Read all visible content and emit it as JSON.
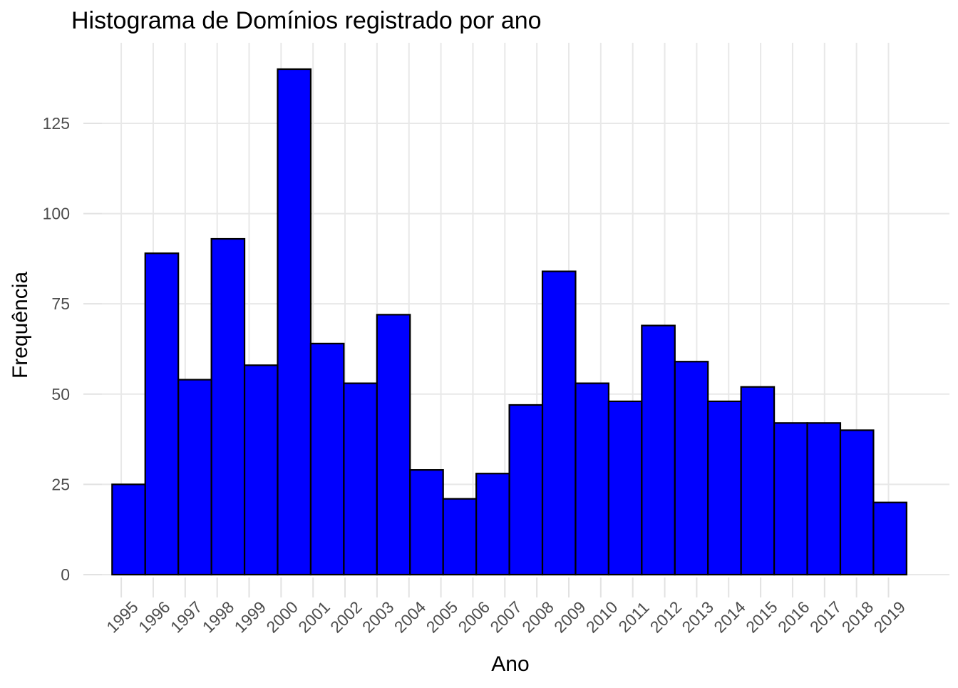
{
  "title": "Histograma de Domínios registrado por ano",
  "chart_data": {
    "type": "bar",
    "subtype": "histogram",
    "title": "Histograma de Domínios registrado por ano",
    "xlabel": "Ano",
    "ylabel": "Frequência",
    "categories": [
      "1995",
      "1996",
      "1997",
      "1998",
      "1999",
      "2000",
      "2001",
      "2002",
      "2003",
      "2004",
      "2005",
      "2006",
      "2007",
      "2008",
      "2009",
      "2010",
      "2011",
      "2012",
      "2013",
      "2014",
      "2015",
      "2016",
      "2017",
      "2018"
    ],
    "values": [
      25,
      89,
      54,
      93,
      58,
      140,
      64,
      53,
      72,
      29,
      21,
      28,
      47,
      84,
      53,
      48,
      69,
      59,
      48,
      52,
      42,
      42,
      40,
      20
    ],
    "x_tick_labels": [
      "1995",
      "1996",
      "1997",
      "1998",
      "1999",
      "2000",
      "2001",
      "2002",
      "2003",
      "2004",
      "2005",
      "2006",
      "2007",
      "2008",
      "2009",
      "2010",
      "2011",
      "2012",
      "2013",
      "2014",
      "2015",
      "2016",
      "2017",
      "2018",
      "2019"
    ],
    "y_ticks": [
      0,
      25,
      50,
      75,
      100,
      125
    ],
    "ylim": [
      0,
      147
    ],
    "grid": "major-only",
    "legend": "none",
    "x_tick_label_angle_deg": 45,
    "bar_fill": "#0000ff",
    "bar_stroke": "#000000"
  },
  "colors": {
    "background": "#ffffff",
    "gridline": "#e8e8e8",
    "tick_mark": "#e2e2e2",
    "axis_text": "#4d4d4d",
    "title_text": "#000000",
    "axis_title_text": "#000000"
  }
}
